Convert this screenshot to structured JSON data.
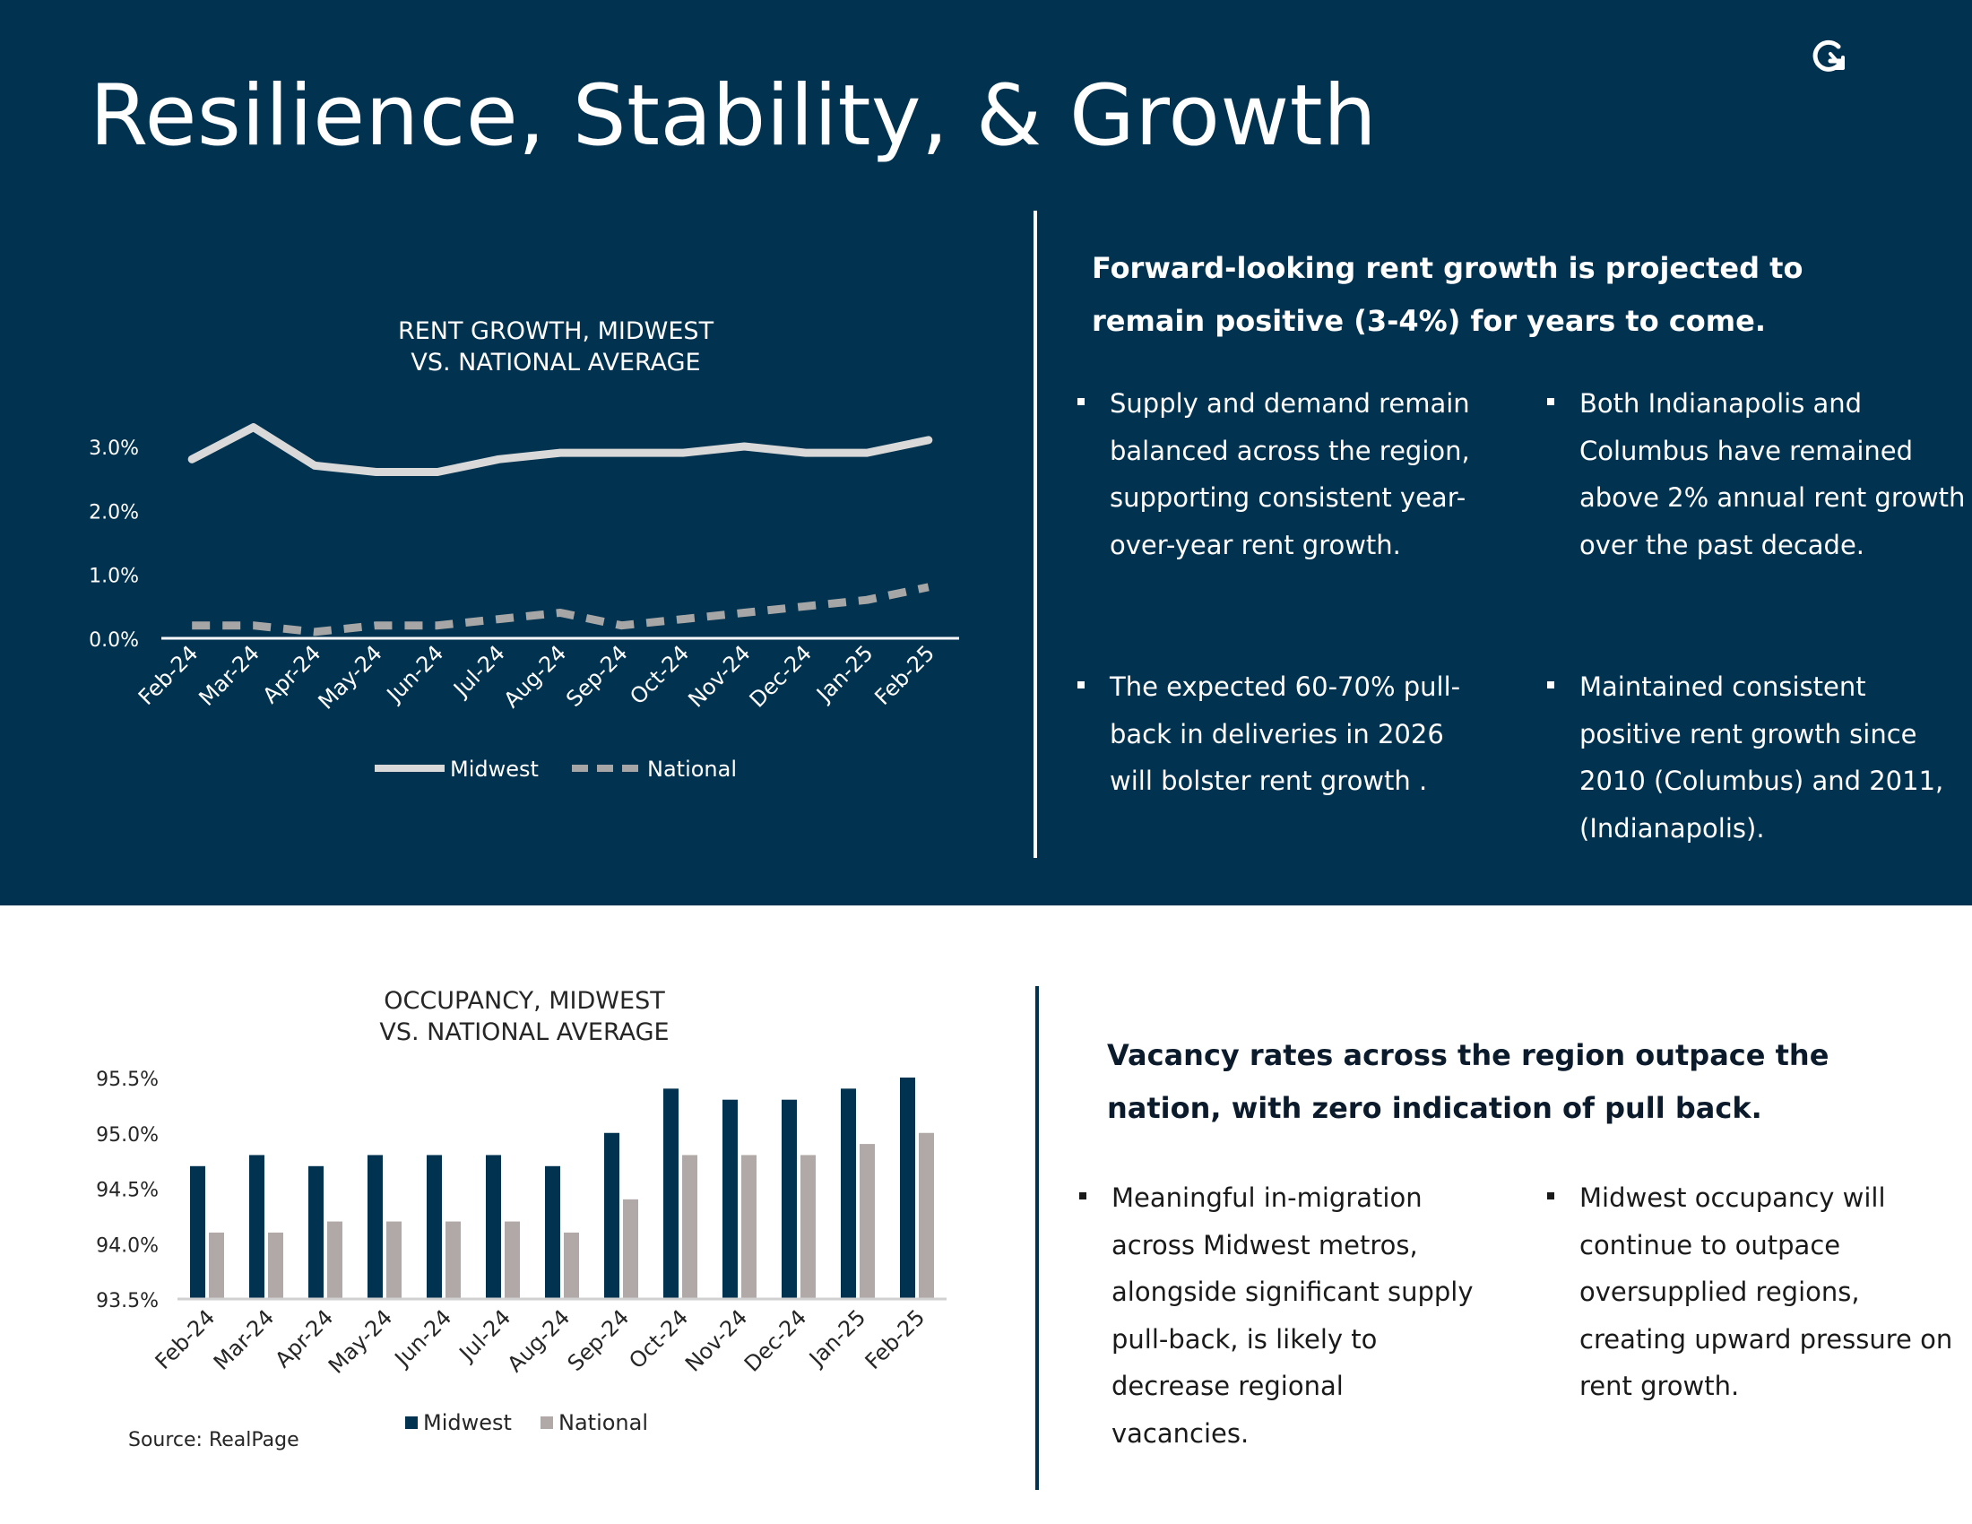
{
  "page": {
    "title": "Resilience, Stability, & Growth",
    "logo_icon": "g-arrow-logo-icon",
    "colors": {
      "navy": "#01324f",
      "gray": "#b0a9a7",
      "white": "#ffffff"
    }
  },
  "top_panel": {
    "heading": "Forward-looking rent growth is projected to remain positive (3-4%) for years to come.",
    "bullets": [
      "Supply and demand remain balanced across the region, supporting consistent year-over-year rent growth.",
      "Both Indianapolis and Columbus have remained above 2% annual rent growth over the past decade.",
      "The expected 60-70% pull-back in deliveries in 2026 will bolster rent growth .",
      "Maintained consistent positive rent growth since 2010 (Columbus) and 2011, (Indianapolis)."
    ]
  },
  "bottom_panel": {
    "heading": "Vacancy rates across the region outpace the nation, with zero indication of  pull back.",
    "bullets": [
      "Meaningful in-migration across Midwest metros, alongside significant supply pull-back, is likely to decrease regional vacancies.",
      "Midwest occupancy will continue to outpace oversupplied regions, creating upward pressure on rent growth."
    ],
    "source": "Source: RealPage"
  },
  "chart_data": [
    {
      "type": "line",
      "title": [
        "RENT GROWTH, MIDWEST",
        "VS. NATIONAL AVERAGE"
      ],
      "categories": [
        "Feb-24",
        "Mar-24",
        "Apr-24",
        "May-24",
        "Jun-24",
        "Jul-24",
        "Aug-24",
        "Sep-24",
        "Oct-24",
        "Nov-24",
        "Dec-24",
        "Jan-25",
        "Feb-25"
      ],
      "series": [
        {
          "name": "Midwest",
          "values": [
            2.8,
            3.3,
            2.7,
            2.6,
            2.6,
            2.8,
            2.9,
            2.9,
            2.9,
            3.0,
            2.9,
            2.9,
            3.1
          ],
          "style": "solid",
          "color": "#d9d9d9"
        },
        {
          "name": "National",
          "values": [
            0.2,
            0.2,
            0.1,
            0.2,
            0.2,
            0.3,
            0.4,
            0.2,
            0.3,
            0.4,
            0.5,
            0.6,
            0.8
          ],
          "style": "dashed",
          "color": "#a6a6a6"
        }
      ],
      "y_ticks": [
        "0.0%",
        "1.0%",
        "2.0%",
        "3.0%"
      ],
      "ylim": [
        0,
        3.0
      ],
      "grid": false,
      "legend": "bottom"
    },
    {
      "type": "bar",
      "title": [
        "OCCUPANCY, MIDWEST",
        "VS. NATIONAL AVERAGE"
      ],
      "categories": [
        "Feb-24",
        "Mar-24",
        "Apr-24",
        "May-24",
        "Jun-24",
        "Jul-24",
        "Aug-24",
        "Sep-24",
        "Oct-24",
        "Nov-24",
        "Dec-24",
        "Jan-25",
        "Feb-25"
      ],
      "series": [
        {
          "name": "Midwest",
          "values": [
            94.7,
            94.8,
            94.7,
            94.8,
            94.8,
            94.8,
            94.7,
            95.0,
            95.4,
            95.3,
            95.3,
            95.4,
            95.5
          ],
          "color": "#01324f"
        },
        {
          "name": "National",
          "values": [
            94.1,
            94.1,
            94.2,
            94.2,
            94.2,
            94.2,
            94.1,
            94.4,
            94.8,
            94.8,
            94.8,
            94.9,
            95.0
          ],
          "color": "#b0a9a7"
        }
      ],
      "y_ticks": [
        "93.5%",
        "94.0%",
        "94.5%",
        "95.0%",
        "95.5%"
      ],
      "ylim": [
        93.5,
        95.5
      ],
      "grid": false,
      "legend": "bottom"
    }
  ]
}
